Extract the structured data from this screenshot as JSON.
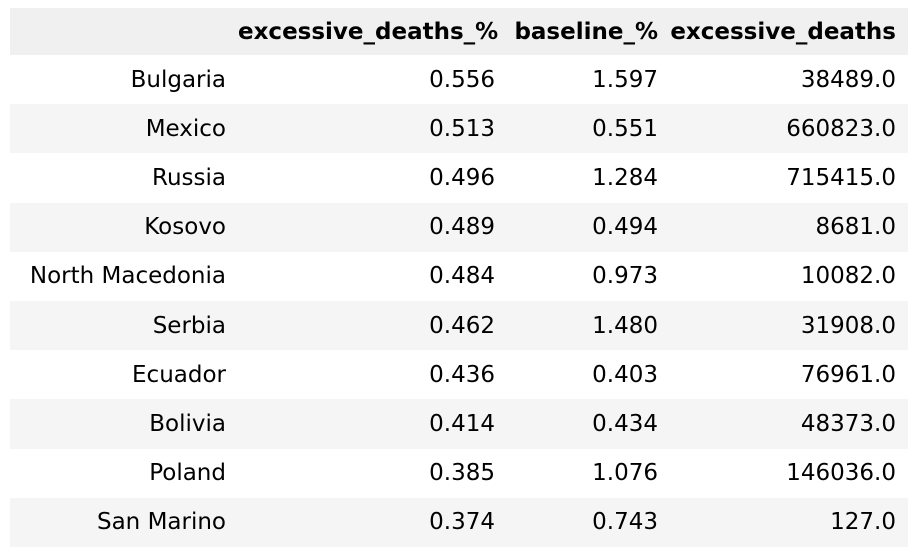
{
  "table": {
    "columns": [
      "",
      "excessive_deaths_%",
      "baseline_%",
      "excessive_deaths"
    ],
    "rows": [
      {
        "country": "Bulgaria",
        "excessive_deaths_pct": "0.556",
        "baseline_pct": "1.597",
        "excessive_deaths": "38489.0"
      },
      {
        "country": "Mexico",
        "excessive_deaths_pct": "0.513",
        "baseline_pct": "0.551",
        "excessive_deaths": "660823.0"
      },
      {
        "country": "Russia",
        "excessive_deaths_pct": "0.496",
        "baseline_pct": "1.284",
        "excessive_deaths": "715415.0"
      },
      {
        "country": "Kosovo",
        "excessive_deaths_pct": "0.489",
        "baseline_pct": "0.494",
        "excessive_deaths": "8681.0"
      },
      {
        "country": "North Macedonia",
        "excessive_deaths_pct": "0.484",
        "baseline_pct": "0.973",
        "excessive_deaths": "10082.0"
      },
      {
        "country": "Serbia",
        "excessive_deaths_pct": "0.462",
        "baseline_pct": "1.480",
        "excessive_deaths": "31908.0"
      },
      {
        "country": "Ecuador",
        "excessive_deaths_pct": "0.436",
        "baseline_pct": "0.403",
        "excessive_deaths": "76961.0"
      },
      {
        "country": "Bolivia",
        "excessive_deaths_pct": "0.414",
        "baseline_pct": "0.434",
        "excessive_deaths": "48373.0"
      },
      {
        "country": "Poland",
        "excessive_deaths_pct": "0.385",
        "baseline_pct": "1.076",
        "excessive_deaths": "146036.0"
      },
      {
        "country": "San Marino",
        "excessive_deaths_pct": "0.374",
        "baseline_pct": "0.743",
        "excessive_deaths": "127.0"
      }
    ]
  }
}
